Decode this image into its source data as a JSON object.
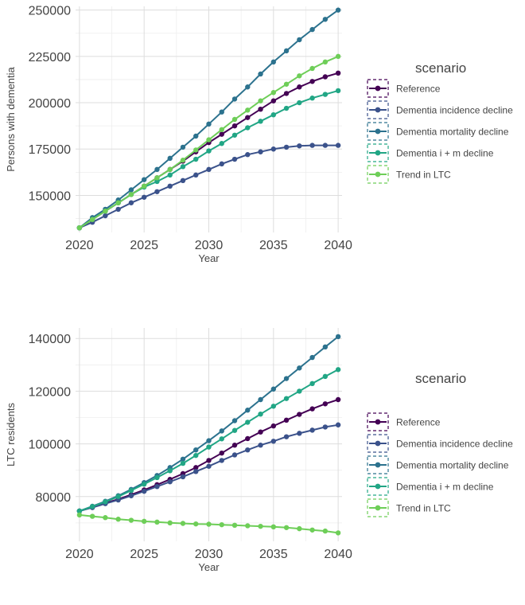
{
  "colors": {
    "Reference": "#440154",
    "Dementia incidence decline": "#3b528b",
    "Dementia mortality decline": "#2c728e",
    "Dementia i + m decline": "#21a685",
    "Trend in LTC": "#6ece58",
    "grid_major": "#dddddd",
    "grid_minor": "#eeeeee",
    "background": "#ffffff"
  },
  "chart_data": [
    {
      "type": "line",
      "xlabel": "Year",
      "ylabel": "Persons with dementia",
      "xlim": [
        2019.7,
        2040.3
      ],
      "ylim": [
        130000,
        252000
      ],
      "x_ticks": [
        2020,
        2025,
        2030,
        2035,
        2040
      ],
      "x_tick_labels": [
        "2020",
        "2025",
        "2030",
        "2035",
        "2040"
      ],
      "y_ticks": [
        150000,
        175000,
        200000,
        225000,
        250000
      ],
      "y_tick_labels": [
        "150000",
        "175000",
        "200000",
        "225000",
        "250000"
      ],
      "grid": true,
      "legend_title": "scenario",
      "legend_position": "right",
      "x": [
        2020,
        2021,
        2022,
        2023,
        2024,
        2025,
        2026,
        2027,
        2028,
        2029,
        2030,
        2031,
        2032,
        2033,
        2034,
        2035,
        2036,
        2037,
        2038,
        2039,
        2040
      ],
      "series": [
        {
          "name": "Reference",
          "values": [
            132500,
            137000,
            141500,
            146000,
            150500,
            155000,
            159500,
            164000,
            168500,
            173500,
            178500,
            183000,
            187500,
            192000,
            196500,
            201000,
            205000,
            208500,
            211500,
            214000,
            216000
          ]
        },
        {
          "name": "Dementia incidence decline",
          "values": [
            132500,
            135500,
            139000,
            142500,
            146000,
            149000,
            152000,
            155000,
            158000,
            161000,
            164000,
            167000,
            169500,
            172000,
            173500,
            175000,
            176000,
            176700,
            177000,
            177000,
            177000
          ]
        },
        {
          "name": "Dementia mortality decline",
          "values": [
            132500,
            138000,
            142500,
            147500,
            153000,
            158500,
            164000,
            170000,
            176000,
            182000,
            188500,
            195000,
            202000,
            208500,
            215500,
            222000,
            228000,
            234000,
            239500,
            245000,
            250000
          ]
        },
        {
          "name": "Dementia i + m decline",
          "values": [
            132500,
            137000,
            141500,
            146000,
            150500,
            154500,
            157500,
            161000,
            165500,
            169500,
            174000,
            178000,
            182500,
            186500,
            190000,
            193500,
            197000,
            200000,
            202500,
            204500,
            206500
          ]
        },
        {
          "name": "Trend in LTC",
          "values": [
            132500,
            137000,
            141500,
            146000,
            150500,
            155000,
            159500,
            164000,
            169000,
            174500,
            180000,
            185500,
            191000,
            196000,
            201000,
            205500,
            210000,
            214500,
            218500,
            222000,
            225000
          ]
        }
      ]
    },
    {
      "type": "line",
      "xlabel": "Year",
      "ylabel": "LTC residents",
      "xlim": [
        2019.7,
        2040.3
      ],
      "ylim": [
        63000,
        144000
      ],
      "x_ticks": [
        2020,
        2025,
        2030,
        2035,
        2040
      ],
      "x_tick_labels": [
        "2020",
        "2025",
        "2030",
        "2035",
        "2040"
      ],
      "y_ticks": [
        80000,
        100000,
        120000,
        140000
      ],
      "y_tick_labels": [
        "80000",
        "100000",
        "120000",
        "140000"
      ],
      "grid": true,
      "legend_title": "scenario",
      "legend_position": "right",
      "x": [
        2020,
        2021,
        2022,
        2023,
        2024,
        2025,
        2026,
        2027,
        2028,
        2029,
        2030,
        2031,
        2032,
        2033,
        2034,
        2035,
        2036,
        2037,
        2038,
        2039,
        2040
      ],
      "series": [
        {
          "name": "Reference",
          "values": [
            74500,
            76000,
            77500,
            79000,
            80700,
            82500,
            84500,
            86500,
            88700,
            91000,
            93700,
            96500,
            99500,
            102000,
            104500,
            106800,
            109000,
            111200,
            113300,
            115200,
            116800
          ]
        },
        {
          "name": "Dementia incidence decline",
          "values": [
            74500,
            75800,
            77300,
            78700,
            80300,
            82000,
            83800,
            85600,
            87500,
            89500,
            91500,
            93700,
            95800,
            97700,
            99500,
            101000,
            102700,
            104000,
            105200,
            106400,
            107200
          ]
        },
        {
          "name": "Dementia mortality decline",
          "values": [
            74500,
            76300,
            78200,
            80300,
            82700,
            85300,
            88000,
            91000,
            94200,
            97700,
            101200,
            104900,
            108800,
            112800,
            116800,
            120800,
            124800,
            128800,
            132800,
            136800,
            140700
          ]
        },
        {
          "name": "Dementia i + m decline",
          "values": [
            74500,
            76200,
            78000,
            80000,
            82300,
            84700,
            87200,
            89800,
            92600,
            95600,
            98800,
            101900,
            105100,
            108200,
            111300,
            114300,
            117200,
            120000,
            122900,
            125600,
            128200
          ]
        },
        {
          "name": "Trend in LTC",
          "values": [
            73000,
            72500,
            72000,
            71400,
            71000,
            70600,
            70300,
            70000,
            69800,
            69600,
            69500,
            69300,
            69100,
            68900,
            68700,
            68500,
            68200,
            67800,
            67300,
            66900,
            66200
          ]
        }
      ]
    }
  ]
}
